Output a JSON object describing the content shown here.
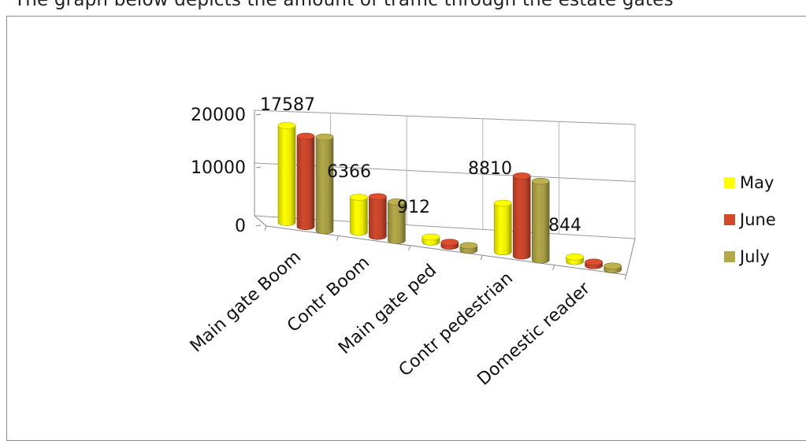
{
  "caption": "The graph below depicts the amount of traffic through the estate gates",
  "chart_data": {
    "type": "bar",
    "style": "3d-cylinder",
    "categories": [
      "Main gate Boom",
      "Contr Boom",
      "Main gate ped",
      "Contr pedestrian",
      "Domestic reader"
    ],
    "series": [
      {
        "name": "May",
        "values": [
          17587,
          6366,
          912,
          8810,
          844
        ],
        "color": "#ffff00"
      },
      {
        "name": "June",
        "values": [
          16400,
          7200,
          700,
          14500,
          650
        ],
        "color": "#d2492e"
      },
      {
        "name": "July",
        "values": [
          17000,
          7000,
          850,
          14300,
          700
        ],
        "color": "#b3a94a"
      }
    ],
    "data_labels": {
      "series": "May",
      "values": [
        "17587",
        "6366",
        "912",
        "8810",
        "844"
      ]
    },
    "ylim": [
      0,
      20000
    ],
    "yticks": [
      "0",
      "10000",
      "20000"
    ],
    "grid": true,
    "legend_position": "right",
    "xlabel": "",
    "ylabel": ""
  }
}
